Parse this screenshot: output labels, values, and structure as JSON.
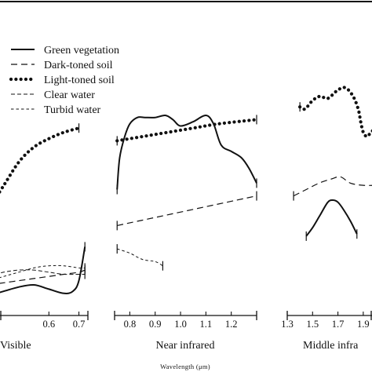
{
  "chart_data": {
    "type": "line",
    "xlabel": "Wavelength (μm)",
    "ylabel": "",
    "grid": false,
    "legend_position": "top-left",
    "styles": {
      "green_vegetation": {
        "dash": "",
        "width": 2.0,
        "color": "#111111"
      },
      "dark_toned_soil": {
        "dash": "8 5",
        "width": 1.2,
        "color": "#111111"
      },
      "light_toned_soil": {
        "dash": "0.1 6.2",
        "width": 4.2,
        "linecap": "round",
        "color": "#111111"
      },
      "clear_water": {
        "dash": "5 3",
        "width": 1.0,
        "color": "#111111"
      },
      "turbid_water": {
        "dash": "3.5 3",
        "width": 1.0,
        "color": "#111111"
      }
    },
    "legend": [
      {
        "key": "green_vegetation",
        "label": "Green vegetation"
      },
      {
        "key": "dark_toned_soil",
        "label": "Dark-toned soil"
      },
      {
        "key": "light_toned_soil",
        "label": "Light-toned soil"
      },
      {
        "key": "clear_water",
        "label": "Clear water"
      },
      {
        "key": "turbid_water",
        "label": "Turbid water"
      }
    ],
    "panels": [
      {
        "id": "visible",
        "label": "Visible",
        "xlim": [
          0.39,
          0.73
        ],
        "xticks": [
          0.6,
          0.7
        ],
        "tick_labels": [
          "0.6",
          "0.7"
        ],
        "y_units": "relative reflectance (no axis)",
        "series": [
          {
            "key": "light_toned_soil",
            "x": [
              0.4,
              0.45,
              0.5,
              0.55,
              0.6,
              0.65,
              0.7
            ],
            "y": [
              0.46,
              0.57,
              0.68,
              0.75,
              0.79,
              0.82,
              0.84
            ]
          },
          {
            "key": "green_vegetation",
            "x": [
              0.4,
              0.45,
              0.5,
              0.55,
              0.6,
              0.65,
              0.68,
              0.7,
              0.72
            ],
            "y": [
              0.05,
              0.07,
              0.09,
              0.1,
              0.08,
              0.06,
              0.07,
              0.12,
              0.28
            ]
          },
          {
            "key": "clear_water",
            "x": [
              0.4,
              0.45,
              0.5,
              0.55,
              0.6,
              0.65,
              0.7,
              0.72
            ],
            "y": [
              0.14,
              0.16,
              0.17,
              0.17,
              0.16,
              0.15,
              0.15,
              0.15
            ]
          },
          {
            "key": "turbid_water",
            "x": [
              0.4,
              0.45,
              0.5,
              0.55,
              0.6,
              0.65,
              0.7,
              0.72
            ],
            "y": [
              0.12,
              0.14,
              0.16,
              0.18,
              0.19,
              0.19,
              0.18,
              0.18
            ]
          },
          {
            "key": "dark_toned_soil",
            "x": [
              0.4,
              0.45,
              0.5,
              0.55,
              0.6,
              0.65,
              0.7,
              0.72
            ],
            "y": [
              0.1,
              0.11,
              0.12,
              0.13,
              0.14,
              0.15,
              0.16,
              0.17
            ]
          }
        ]
      },
      {
        "id": "near_infrared",
        "label": "Near infrared",
        "xlim": [
          0.74,
          1.3
        ],
        "xticks": [
          0.8,
          0.9,
          1.0,
          1.1,
          1.2
        ],
        "tick_labels": [
          "0.8",
          "0.9",
          "1.0",
          "1.1",
          "1.2"
        ],
        "y_units": "relative reflectance (no axis)",
        "series": [
          {
            "key": "light_toned_soil",
            "x": [
              0.75,
              0.85,
              0.95,
              1.05,
              1.15,
              1.3
            ],
            "y": [
              0.78,
              0.8,
              0.82,
              0.84,
              0.86,
              0.88
            ]
          },
          {
            "key": "green_vegetation",
            "x": [
              0.75,
              0.76,
              0.78,
              0.8,
              0.83,
              0.86,
              0.9,
              0.94,
              0.97,
              1.0,
              1.05,
              1.1,
              1.13,
              1.16,
              1.2,
              1.24,
              1.27,
              1.3
            ],
            "y": [
              0.55,
              0.7,
              0.8,
              0.86,
              0.89,
              0.89,
              0.89,
              0.9,
              0.88,
              0.85,
              0.87,
              0.9,
              0.86,
              0.76,
              0.73,
              0.7,
              0.65,
              0.58
            ]
          },
          {
            "key": "dark_toned_soil",
            "x": [
              0.75,
              1.3
            ],
            "y": [
              0.38,
              0.52
            ]
          },
          {
            "key": "turbid_water",
            "x": [
              0.75,
              0.8,
              0.85,
              0.9,
              0.93
            ],
            "y": [
              0.27,
              0.25,
              0.22,
              0.21,
              0.19
            ]
          }
        ]
      },
      {
        "id": "middle_infrared",
        "label": "Middle infra",
        "xlim": [
          1.3,
          2.0
        ],
        "xticks": [
          1.3,
          1.5,
          1.7,
          1.9
        ],
        "tick_labels": [
          "1.3",
          "1.5",
          "1.7",
          "1.9"
        ],
        "y_units": "relative reflectance (no axis)",
        "series": [
          {
            "key": "light_toned_soil",
            "x": [
              1.4,
              1.44,
              1.5,
              1.56,
              1.62,
              1.7,
              1.76,
              1.82,
              1.86,
              1.88,
              1.9,
              1.93,
              1.96,
              2.0
            ],
            "y": [
              0.94,
              0.93,
              0.97,
              0.99,
              0.98,
              1.02,
              1.03,
              0.99,
              0.93,
              0.87,
              0.82,
              0.8,
              0.82,
              0.84
            ]
          },
          {
            "key": "dark_toned_soil",
            "x": [
              1.35,
              1.45,
              1.55,
              1.65,
              1.72,
              1.8,
              1.9,
              2.0
            ],
            "y": [
              0.52,
              0.55,
              0.58,
              0.6,
              0.61,
              0.58,
              0.57,
              0.57
            ]
          },
          {
            "key": "green_vegetation",
            "x": [
              1.45,
              1.5,
              1.56,
              1.62,
              1.66,
              1.7,
              1.75,
              1.8,
              1.85
            ],
            "y": [
              0.33,
              0.37,
              0.43,
              0.49,
              0.5,
              0.49,
              0.45,
              0.4,
              0.34
            ]
          }
        ]
      }
    ]
  }
}
